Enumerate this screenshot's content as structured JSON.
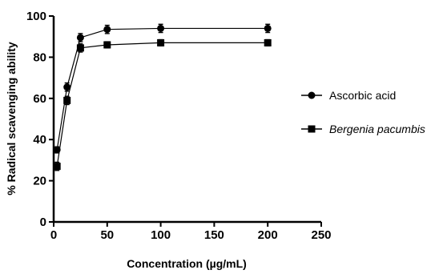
{
  "chart_data": {
    "type": "line",
    "title": "",
    "xlabel": "Concentration (µg/mL)",
    "ylabel": "% Radical scavenging ability",
    "xlim": [
      0,
      250
    ],
    "ylim": [
      0,
      100
    ],
    "xticks": [
      "0",
      "50",
      "100",
      "150",
      "200",
      "250"
    ],
    "yticks": [
      "0",
      "20",
      "40",
      "60",
      "80",
      "100"
    ],
    "x": [
      3.125,
      12.5,
      25,
      50,
      100,
      200
    ],
    "series": [
      {
        "name": "Ascorbic acid",
        "marker": "circle",
        "values": [
          35,
          65.5,
          89.5,
          93.5,
          94,
          94
        ],
        "errors": [
          1.5,
          2,
          2,
          2,
          2,
          2
        ]
      },
      {
        "name": "Bergenia pacumbis",
        "marker": "square",
        "italic": true,
        "values": [
          27,
          59,
          84.5,
          86,
          87,
          87
        ],
        "errors": [
          2,
          2,
          2,
          1.5,
          1.5,
          1.5
        ]
      }
    ],
    "legend_position": "right",
    "grid": false,
    "colors": {
      "line": "#000000",
      "marker": "#000000"
    }
  }
}
